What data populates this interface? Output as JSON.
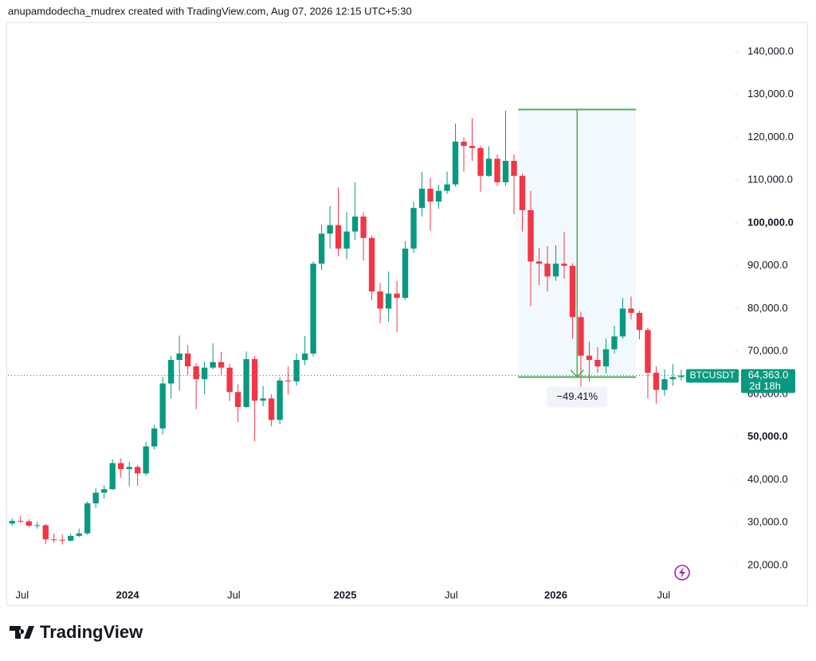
{
  "header": "anupamdodecha_mudrex created with TradingView.com, Aug 07, 2026 12:15 UTC+5:30",
  "footer": "TradingView",
  "chart_data": {
    "type": "candlestick",
    "series": [
      {
        "name": "BTCUSDT",
        "up_color": "#089981",
        "down_color": "#f23645",
        "open": [
          29800,
          30400,
          30300,
          29300,
          29400,
          26100,
          26000,
          25800,
          26900,
          27500,
          34500,
          37000,
          37800,
          43900,
          42500,
          43000,
          41500,
          47800,
          52000,
          62500,
          68000,
          69500,
          66500,
          63500,
          66200,
          67500,
          66200,
          60500,
          57000,
          68200,
          58500,
          59000,
          54000,
          63200,
          63000,
          68000,
          69500,
          90500,
          97500,
          99500,
          94000,
          98000,
          101500,
          96500,
          84000,
          80000,
          83500,
          82500,
          94000,
          103500,
          108000,
          105000,
          107500,
          109000,
          119000,
          118000,
          117500,
          111000,
          115000,
          109500,
          114500,
          111000,
          103000,
          91000,
          90500,
          87500,
          90500,
          90000,
          78000,
          69000,
          68000,
          66500,
          70500,
          73500,
          80000,
          79000,
          75000,
          65000,
          61000,
          63500,
          64000
        ],
        "high": [
          31000,
          31500,
          30800,
          30200,
          29700,
          27500,
          27200,
          27400,
          28600,
          35000,
          38000,
          38800,
          44800,
          45000,
          44200,
          43500,
          48900,
          52800,
          64000,
          69000,
          73700,
          71500,
          67200,
          67600,
          71900,
          69900,
          67000,
          62300,
          70000,
          68900,
          61900,
          60000,
          64000,
          66500,
          69500,
          73600,
          91000,
          99600,
          104000,
          108300,
          102500,
          109500,
          102500,
          97000,
          86000,
          88700,
          86500,
          95700,
          105000,
          111900,
          110500,
          108900,
          112000,
          123200,
          120000,
          124500,
          118000,
          117900,
          116000,
          126200,
          116000,
          111500,
          107500,
          94200,
          94600,
          94800,
          97900,
          90600,
          79300,
          72300,
          71000,
          73000,
          76000,
          82500,
          82800,
          79500,
          75500,
          66500,
          65800,
          67000,
          65800
        ],
        "low": [
          29200,
          29900,
          28900,
          28600,
          25000,
          25300,
          24900,
          25600,
          26600,
          27100,
          33400,
          35600,
          37600,
          40500,
          38500,
          38600,
          41000,
          47100,
          50600,
          59000,
          60800,
          64500,
          56500,
          60000,
          65800,
          64500,
          58400,
          53500,
          56800,
          49000,
          57200,
          52500,
          53000,
          60000,
          62000,
          66800,
          68800,
          89000,
          94000,
          92200,
          91500,
          96000,
          91200,
          82000,
          76600,
          77000,
          74500,
          82000,
          93000,
          101500,
          98200,
          103300,
          106800,
          108500,
          112000,
          114500,
          107300,
          110800,
          108600,
          108700,
          102000,
          98000,
          80600,
          85500,
          84000,
          86500,
          87000,
          72900,
          60000,
          63000,
          65000,
          64800,
          69500,
          73000,
          77500,
          72800,
          59000,
          57800,
          59600,
          62000,
          63200
        ],
        "close": [
          30400,
          30300,
          29300,
          29400,
          26100,
          26000,
          25800,
          26900,
          27500,
          34500,
          37000,
          37800,
          43900,
          42500,
          43000,
          41500,
          47800,
          52000,
          62500,
          68000,
          69500,
          66500,
          63500,
          66200,
          67500,
          66200,
          60500,
          57000,
          68200,
          58500,
          59000,
          54000,
          63200,
          63000,
          68000,
          69500,
          90500,
          97500,
          99500,
          94000,
          98000,
          101500,
          96500,
          84000,
          80000,
          83500,
          82500,
          94000,
          103500,
          108000,
          105000,
          107500,
          109000,
          119000,
          118000,
          117500,
          111000,
          115000,
          109500,
          114500,
          111000,
          103000,
          91000,
          90500,
          87500,
          90500,
          90000,
          78000,
          69000,
          68000,
          66500,
          70500,
          73500,
          80000,
          79000,
          75000,
          65000,
          61000,
          63500,
          64000,
          64363
        ]
      }
    ],
    "xlim": [
      -0.5,
      86.2
    ],
    "xticks": [
      {
        "value": 1.2,
        "label": "Jul"
      },
      {
        "value": 13.8,
        "label": "2024"
      },
      {
        "value": 26.5,
        "label": "Jul"
      },
      {
        "value": 39.8,
        "label": "2025"
      },
      {
        "value": 52.5,
        "label": "Jul"
      },
      {
        "value": 65,
        "label": "2026"
      },
      {
        "value": 77.9,
        "label": "Jul"
      }
    ],
    "ylim": [
      15350,
      146500
    ],
    "yticks": [
      {
        "value": 20000,
        "label": "20,000.0"
      },
      {
        "value": 30000,
        "label": "30,000.0"
      },
      {
        "value": 40000,
        "label": "40,000.0"
      },
      {
        "value": 50000,
        "label": "50,000.0"
      },
      {
        "value": 60000,
        "label": "60,000.0"
      },
      {
        "value": 70000,
        "label": "70,000.0"
      },
      {
        "value": 80000,
        "label": "80,000.0"
      },
      {
        "value": 90000,
        "label": "90,000.0"
      },
      {
        "value": 100000,
        "label": "100,000.0"
      },
      {
        "value": 110000,
        "label": "110,000.0"
      },
      {
        "value": 120000,
        "label": "120,000.0"
      },
      {
        "value": 130000,
        "label": "130,000.0"
      },
      {
        "value": 140000,
        "label": "140,000.0"
      }
    ],
    "last_price": {
      "value": 64363,
      "label": "64,363.0"
    },
    "countdown": "2d 18h",
    "measure": {
      "from": 126500,
      "to": 64000,
      "x_from": 60.5,
      "x_to": 74.6,
      "change": {
        "value": -49.41,
        "label": "−49.41%"
      }
    }
  }
}
